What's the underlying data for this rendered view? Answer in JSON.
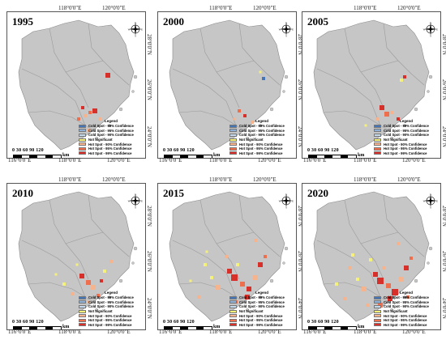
{
  "labels": {
    "lon_116": "116°0'0\"E",
    "lon_118": "118°0'0\"E",
    "lon_120": "120°0'0\"E",
    "lat_28": "28°0'0\"N",
    "lat_26": "26°0'0\"N",
    "lat_24": "24°0'0\"N",
    "compass_n": "N",
    "compass_s": "S",
    "compass_e": "E",
    "compass_w": "W",
    "scale_nums": "0  30  60  90  120",
    "scale_unit": "km",
    "legend_title": "Legend"
  },
  "colors": {
    "land": "#c6c6c6",
    "border": "#9a9a9a",
    "cold99": "#4575b4",
    "cold95": "#8fb0d6",
    "cold90": "#c5d8ea",
    "not_sig": "#f5f07a",
    "hot90": "#f6b48e",
    "hot95": "#ee6f4d",
    "hot99": "#d7302a"
  },
  "legend_items": [
    {
      "label": "Cold Spot - 99% Confidence",
      "color": "#4575b4"
    },
    {
      "label": "Cold Spot - 95% Confidence",
      "color": "#8fb0d6"
    },
    {
      "label": "Cold Spot - 90% Confidence",
      "color": "#c5d8ea"
    },
    {
      "label": "Not Significant",
      "color": "#f5f07a"
    },
    {
      "label": "Hot Spot - 90% Confidence",
      "color": "#f6b48e"
    },
    {
      "label": "Hot Spot - 95% Confidence",
      "color": "#ee6f4d"
    },
    {
      "label": "Hot Spot - 99% Confidence",
      "color": "#d7302a"
    }
  ],
  "panels": [
    {
      "year": "1995"
    },
    {
      "year": "2000"
    },
    {
      "year": "2005"
    },
    {
      "year": "2010"
    },
    {
      "year": "2015"
    },
    {
      "year": "2020"
    }
  ]
}
